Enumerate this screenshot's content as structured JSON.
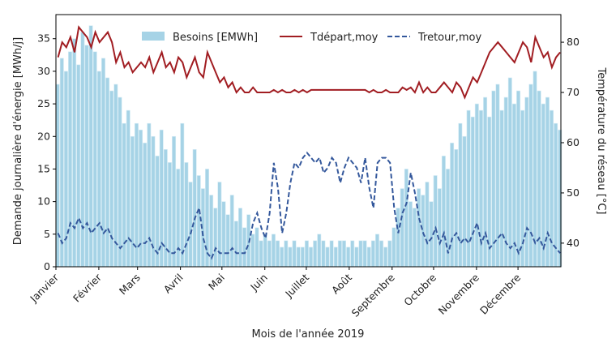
{
  "chart_data": {
    "type": "bar_line",
    "xlabel": "Mois de l'année 2019",
    "ylabel": "Demande journalière d'énergie [MWh/j]",
    "y2label": "Température du réseau [°C]",
    "xlim": [
      0,
      365
    ],
    "xticks": [
      {
        "value": 0,
        "label": "Janvier"
      },
      {
        "value": 31,
        "label": "Février"
      },
      {
        "value": 59,
        "label": "Mars"
      },
      {
        "value": 90,
        "label": "Avril"
      },
      {
        "value": 120,
        "label": "Mai"
      },
      {
        "value": 151,
        "label": "Juin"
      },
      {
        "value": 181,
        "label": "Juillet"
      },
      {
        "value": 212,
        "label": "Août"
      },
      {
        "value": 243,
        "label": "Septembre"
      },
      {
        "value": 273,
        "label": "Octobre"
      },
      {
        "value": 304,
        "label": "Novembre"
      },
      {
        "value": 334,
        "label": "Décembre"
      }
    ],
    "ylim": [
      0,
      38.7
    ],
    "yticks": [
      0,
      5,
      10,
      15,
      20,
      25,
      30,
      35
    ],
    "y2lim": [
      35.3,
      85.5
    ],
    "y2ticks": [
      40,
      50,
      60,
      70,
      80
    ],
    "legend": "upper center",
    "x": [
      0,
      3,
      6,
      9,
      12,
      15,
      18,
      21,
      24,
      27,
      30,
      33,
      36,
      39,
      42,
      45,
      48,
      51,
      54,
      57,
      60,
      63,
      66,
      69,
      72,
      75,
      78,
      81,
      84,
      87,
      90,
      93,
      96,
      99,
      102,
      105,
      108,
      111,
      114,
      117,
      120,
      123,
      126,
      129,
      132,
      135,
      138,
      141,
      144,
      147,
      150,
      153,
      156,
      159,
      162,
      165,
      168,
      171,
      174,
      177,
      180,
      183,
      186,
      189,
      192,
      195,
      198,
      201,
      204,
      207,
      210,
      213,
      216,
      219,
      222,
      225,
      228,
      231,
      234,
      237,
      240,
      243,
      246,
      249,
      252,
      255,
      258,
      261,
      264,
      267,
      270,
      273,
      276,
      279,
      282,
      285,
      288,
      291,
      294,
      297,
      300,
      303,
      306,
      309,
      312,
      315,
      318,
      321,
      324,
      327,
      330,
      333,
      336,
      339,
      342,
      345,
      348,
      351,
      354,
      357,
      360,
      363
    ],
    "series": [
      {
        "name": "Besoins [EMWh]",
        "kind": "bar",
        "color": "#a6d3e6",
        "values": [
          28,
          32,
          30,
          33,
          35,
          31,
          36,
          34,
          37,
          33,
          30,
          32,
          29,
          27,
          28,
          26,
          22,
          24,
          20,
          22,
          21,
          19,
          22,
          20,
          17,
          21,
          18,
          16,
          20,
          15,
          22,
          16,
          13,
          18,
          14,
          12,
          15,
          11,
          9,
          13,
          10,
          8,
          11,
          7,
          9,
          6,
          8,
          5,
          6,
          4,
          5,
          4,
          5,
          4,
          3,
          4,
          3,
          4,
          3,
          3,
          4,
          3,
          4,
          5,
          4,
          3,
          4,
          3,
          4,
          4,
          3,
          4,
          3,
          4,
          4,
          3,
          4,
          5,
          4,
          3,
          4,
          6,
          9,
          12,
          15,
          10,
          9,
          12,
          11,
          13,
          10,
          14,
          12,
          17,
          15,
          19,
          18,
          22,
          20,
          24,
          23,
          25,
          24,
          26,
          23,
          27,
          28,
          24,
          26,
          29,
          25,
          27,
          24,
          26,
          28,
          30,
          27,
          25,
          26,
          24,
          22,
          21
        ]
      },
      {
        "name": "Tdépart,moy",
        "kind": "line",
        "axis": "y2",
        "color": "#a11d22",
        "dash": false,
        "values": [
          77,
          80,
          79,
          81,
          78,
          83,
          82,
          81,
          79,
          82,
          80,
          81,
          82,
          80,
          76,
          78,
          75,
          76,
          74,
          75,
          76,
          75,
          77,
          74,
          76,
          78,
          75,
          76,
          74,
          77,
          76,
          73,
          75,
          77,
          74,
          73,
          78,
          76,
          74,
          72,
          73,
          71,
          72,
          70,
          71,
          70,
          70,
          71,
          70,
          70,
          70,
          70,
          70.5,
          70,
          70.5,
          70,
          70,
          70.5,
          70,
          70.5,
          70,
          70.5,
          70.5,
          70.5,
          70.5,
          70.5,
          70.5,
          70.5,
          70.5,
          70.5,
          70.5,
          70.5,
          70.5,
          70.5,
          70.5,
          70,
          70.5,
          70,
          70,
          70.5,
          70,
          70,
          70,
          71,
          70.5,
          71,
          70,
          72,
          70,
          71,
          70,
          70,
          71,
          72,
          71,
          70,
          72,
          71,
          69,
          71,
          73,
          72,
          74,
          76,
          78,
          79,
          80,
          79,
          78,
          77,
          76,
          78,
          80,
          79,
          76,
          81,
          79,
          77,
          78,
          75,
          77,
          78
        ]
      },
      {
        "name": "Tretour,moy",
        "kind": "line",
        "axis": "y2",
        "color": "#34589c",
        "dash": true,
        "values": [
          42,
          40,
          41,
          44,
          43,
          45,
          43,
          44,
          42,
          43,
          44,
          42,
          43,
          41,
          40,
          39,
          40,
          41,
          40,
          39,
          40,
          40,
          41,
          39,
          38,
          40,
          39,
          38,
          38,
          39,
          38,
          40,
          42,
          45,
          47,
          41,
          38,
          37,
          39,
          38,
          38,
          38,
          39,
          38,
          38,
          38,
          40,
          44,
          46,
          43,
          41,
          46,
          56,
          51,
          42,
          46,
          52,
          56,
          55,
          57,
          58,
          57,
          56,
          57,
          54,
          55,
          57,
          56,
          52,
          55,
          57,
          56,
          55,
          52,
          57,
          51,
          47,
          56,
          57,
          57,
          56,
          47,
          42,
          46,
          48,
          54,
          50,
          45,
          42,
          40,
          41,
          43,
          40,
          42,
          38,
          41,
          42,
          40,
          41,
          40,
          42,
          44,
          40,
          42,
          39,
          40,
          41,
          42,
          40,
          39,
          40,
          38,
          40,
          43,
          42,
          40,
          41,
          39,
          42,
          40,
          39,
          38
        ]
      }
    ]
  }
}
